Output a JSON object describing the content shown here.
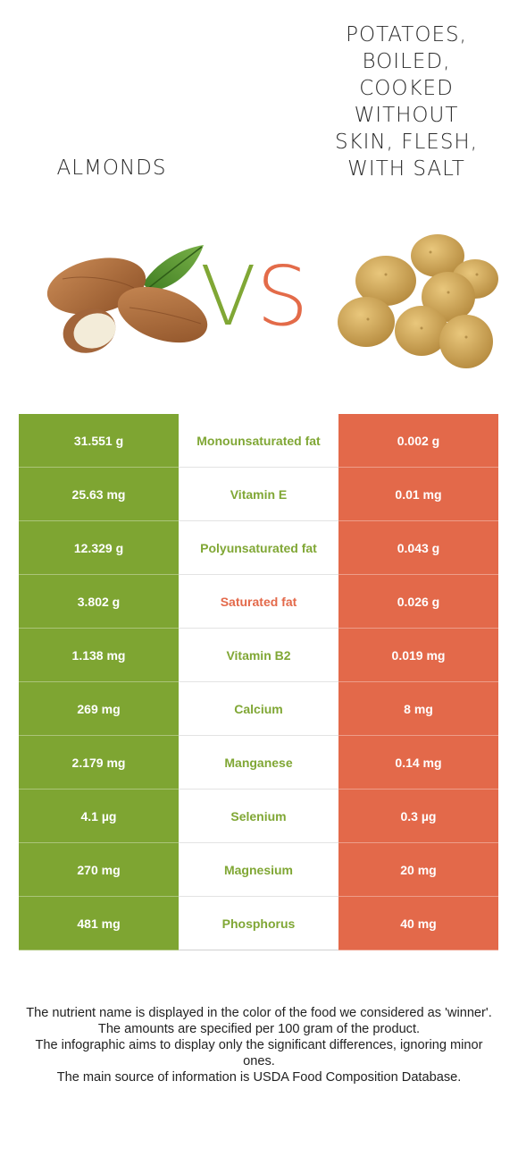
{
  "left_food": {
    "name": "Almonds",
    "color": "#7ea532"
  },
  "right_food": {
    "name_lines": [
      "Potatoes,",
      "boiled,",
      "cooked",
      "without",
      "skin, flesh,",
      "with salt"
    ],
    "color": "#e3694a"
  },
  "vs": {
    "v": "V",
    "s": "S"
  },
  "rows": [
    {
      "left": "31.551 g",
      "nutrient": "Monounsaturated fat",
      "right": "0.002 g",
      "winner": "left"
    },
    {
      "left": "25.63 mg",
      "nutrient": "Vitamin E",
      "right": "0.01 mg",
      "winner": "left"
    },
    {
      "left": "12.329 g",
      "nutrient": "Polyunsaturated fat",
      "right": "0.043 g",
      "winner": "left"
    },
    {
      "left": "3.802 g",
      "nutrient": "Saturated fat",
      "right": "0.026 g",
      "winner": "right"
    },
    {
      "left": "1.138 mg",
      "nutrient": "Vitamin B2",
      "right": "0.019 mg",
      "winner": "left"
    },
    {
      "left": "269 mg",
      "nutrient": "Calcium",
      "right": "8 mg",
      "winner": "left"
    },
    {
      "left": "2.179 mg",
      "nutrient": "Manganese",
      "right": "0.14 mg",
      "winner": "left"
    },
    {
      "left": "4.1 µg",
      "nutrient": "Selenium",
      "right": "0.3 µg",
      "winner": "left"
    },
    {
      "left": "270 mg",
      "nutrient": "Magnesium",
      "right": "20 mg",
      "winner": "left"
    },
    {
      "left": "481 mg",
      "nutrient": "Phosphorus",
      "right": "40 mg",
      "winner": "left"
    }
  ],
  "footer": [
    "The nutrient name is displayed in the color of the food we considered as 'winner'.",
    "The amounts are specified per 100 gram of the product.",
    "The infographic aims to display only the significant differences, ignoring minor ones.",
    "The main source of information is USDA Food Composition Database."
  ]
}
